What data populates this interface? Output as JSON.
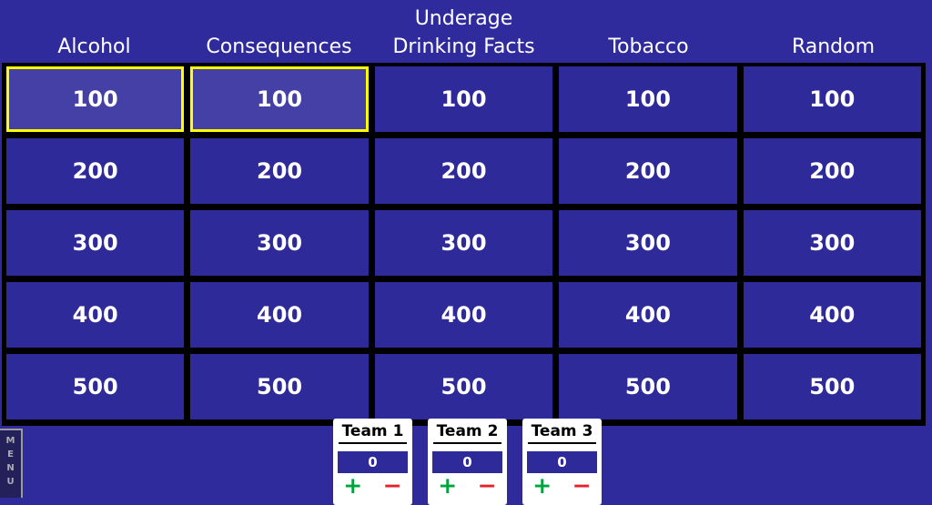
{
  "header": {
    "categories": [
      "Alcohol",
      "Consequences",
      "Underage\nDrinking Facts",
      "Tobacco",
      "Random"
    ]
  },
  "board": {
    "values": [
      [
        "100",
        "100",
        "100",
        "100",
        "100"
      ],
      [
        "200",
        "200",
        "200",
        "200",
        "200"
      ],
      [
        "300",
        "300",
        "300",
        "300",
        "300"
      ],
      [
        "400",
        "400",
        "400",
        "400",
        "400"
      ],
      [
        "500",
        "500",
        "500",
        "500",
        "500"
      ]
    ],
    "selected_cells": [
      {
        "row": 0,
        "col": 0
      },
      {
        "row": 0,
        "col": 1
      }
    ]
  },
  "teams": [
    {
      "name": "Team 1",
      "score": "0",
      "plus_label": "+",
      "minus_label": "−"
    },
    {
      "name": "Team 2",
      "score": "0",
      "plus_label": "+",
      "minus_label": "−"
    },
    {
      "name": "Team 3",
      "score": "0",
      "plus_label": "+",
      "minus_label": "−"
    }
  ],
  "menu": {
    "label": "M\nE\nN\nU"
  },
  "colors": {
    "background": "#302B9C",
    "cell_blue": "#2F2A99",
    "selected_cell_blue": "#4540A5",
    "selected_border_yellow": "#FFFF00",
    "grid_black": "#000000",
    "text_white": "#FFFFFF",
    "plus_green": "#00A33C",
    "minus_red": "#E6202A",
    "menu_fill": "#23205A",
    "menu_text_gray": "#ACACB4"
  }
}
